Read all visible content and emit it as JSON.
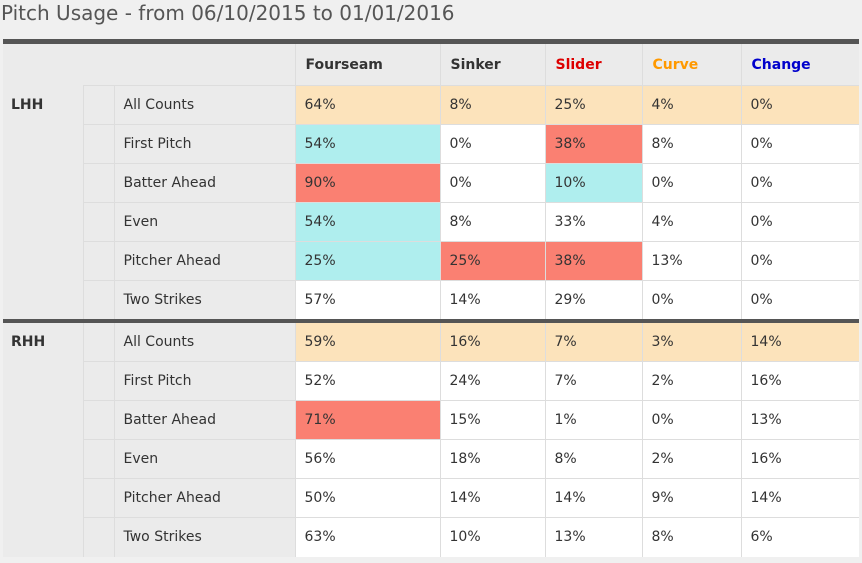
{
  "title": "Pitch Usage - from 06/10/2015 to 01/01/2016",
  "columns": [
    {
      "label": "Fourseam",
      "color": "#333333"
    },
    {
      "label": "Sinker",
      "color": "#333333"
    },
    {
      "label": "Slider",
      "color": "#dd0000"
    },
    {
      "label": "Curve",
      "color": "#ff9900"
    },
    {
      "label": "Change",
      "color": "#0000cc"
    }
  ],
  "highlight_colors": {
    "red": "#fa8072",
    "cyan": "#afeeee",
    "all_counts": "#fce3bb"
  },
  "groups": [
    {
      "label": "LHH",
      "rows": [
        {
          "label": "All Counts",
          "values": [
            "64%",
            "8%",
            "25%",
            "4%",
            "0%"
          ],
          "highlights": [
            "",
            "",
            "",
            "",
            ""
          ]
        },
        {
          "label": "First Pitch",
          "values": [
            "54%",
            "0%",
            "38%",
            "8%",
            "0%"
          ],
          "highlights": [
            "cyan",
            "",
            "red",
            "",
            ""
          ]
        },
        {
          "label": "Batter Ahead",
          "values": [
            "90%",
            "0%",
            "10%",
            "0%",
            "0%"
          ],
          "highlights": [
            "red",
            "",
            "cyan",
            "",
            ""
          ]
        },
        {
          "label": "Even",
          "values": [
            "54%",
            "8%",
            "33%",
            "4%",
            "0%"
          ],
          "highlights": [
            "cyan",
            "",
            "",
            "",
            ""
          ]
        },
        {
          "label": "Pitcher Ahead",
          "values": [
            "25%",
            "25%",
            "38%",
            "13%",
            "0%"
          ],
          "highlights": [
            "cyan",
            "red",
            "red",
            "",
            ""
          ]
        },
        {
          "label": "Two Strikes",
          "values": [
            "57%",
            "14%",
            "29%",
            "0%",
            "0%"
          ],
          "highlights": [
            "",
            "",
            "",
            "",
            ""
          ]
        }
      ]
    },
    {
      "label": "RHH",
      "rows": [
        {
          "label": "All Counts",
          "values": [
            "59%",
            "16%",
            "7%",
            "3%",
            "14%"
          ],
          "highlights": [
            "",
            "",
            "",
            "",
            ""
          ]
        },
        {
          "label": "First Pitch",
          "values": [
            "52%",
            "24%",
            "7%",
            "2%",
            "16%"
          ],
          "highlights": [
            "",
            "",
            "",
            "",
            ""
          ]
        },
        {
          "label": "Batter Ahead",
          "values": [
            "71%",
            "15%",
            "1%",
            "0%",
            "13%"
          ],
          "highlights": [
            "red",
            "",
            "",
            "",
            ""
          ]
        },
        {
          "label": "Even",
          "values": [
            "56%",
            "18%",
            "8%",
            "2%",
            "16%"
          ],
          "highlights": [
            "",
            "",
            "",
            "",
            ""
          ]
        },
        {
          "label": "Pitcher Ahead",
          "values": [
            "50%",
            "14%",
            "14%",
            "9%",
            "14%"
          ],
          "highlights": [
            "",
            "",
            "",
            "",
            ""
          ]
        },
        {
          "label": "Two Strikes",
          "values": [
            "63%",
            "10%",
            "13%",
            "8%",
            "6%"
          ],
          "highlights": [
            "",
            "",
            "",
            "",
            ""
          ]
        }
      ]
    }
  ]
}
